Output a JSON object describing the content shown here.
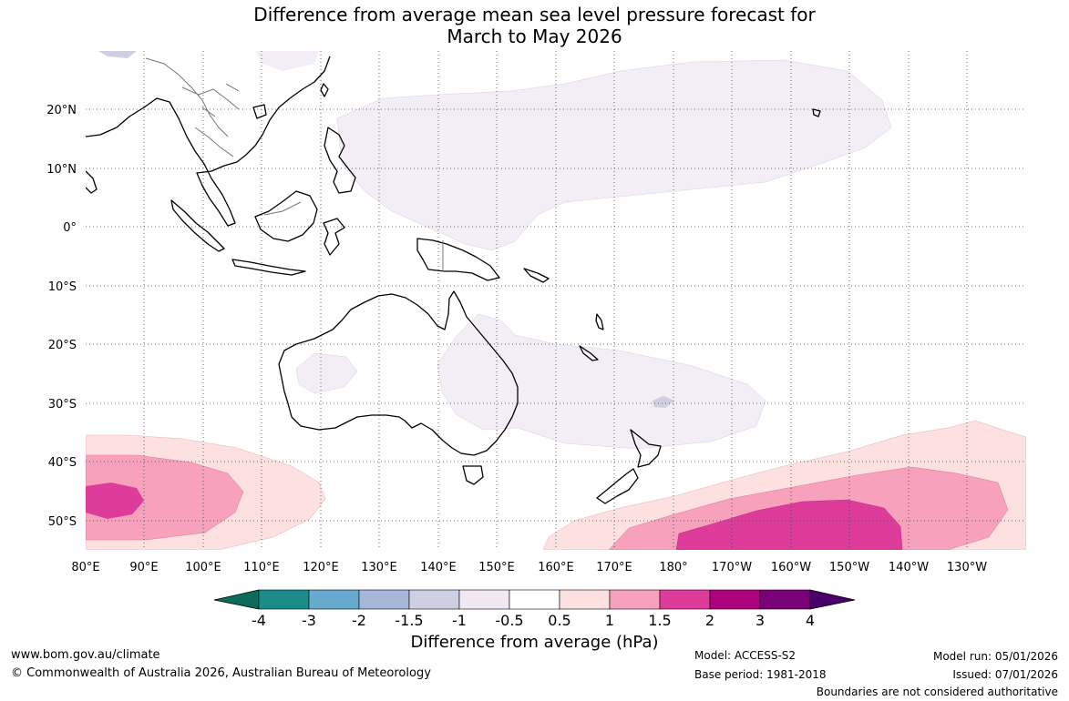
{
  "title": {
    "line1": "Difference from average mean sea level pressure forecast for",
    "line2": "March to May 2026"
  },
  "map": {
    "latitude_labels": [
      "20°N",
      "10°N",
      "0°",
      "10°S",
      "20°S",
      "30°S",
      "40°S",
      "50°S"
    ],
    "longitude_labels": [
      "80°E",
      "90°E",
      "100°E",
      "110°E",
      "120°E",
      "130°E",
      "140°E",
      "150°E",
      "160°E",
      "170°E",
      "180°",
      "170°W",
      "160°W",
      "150°W",
      "140°W",
      "130°W"
    ]
  },
  "colorbar": {
    "tick_labels": [
      "-4",
      "-3",
      "-2",
      "-1.5",
      "-1",
      "-0.5",
      "0.5",
      "1",
      "1.5",
      "2",
      "3",
      "4"
    ],
    "colors": [
      "#1a8c8a",
      "#67a9cf",
      "#a6b7da",
      "#cfcfe3",
      "#f1e8f2",
      "#ffffff",
      "#fde0e0",
      "#f7a1bd",
      "#de3c9a",
      "#ae017e",
      "#7a0177"
    ],
    "low_extend_color": "#0c6b5a",
    "high_extend_color": "#49006a",
    "label": "Difference from average (hPa)"
  },
  "footer": {
    "website": "www.bom.gov.au/climate",
    "copyright": "© Commonwealth of Australia 2026, Australian Bureau of Meteorology",
    "model": "Model: ACCESS-S2",
    "base_period": "Base period: 1981-2018",
    "model_run": "Model run: 05/01/2026",
    "issued": "Issued: 07/01/2026",
    "disclaimer": "Boundaries are not considered authoritative"
  }
}
